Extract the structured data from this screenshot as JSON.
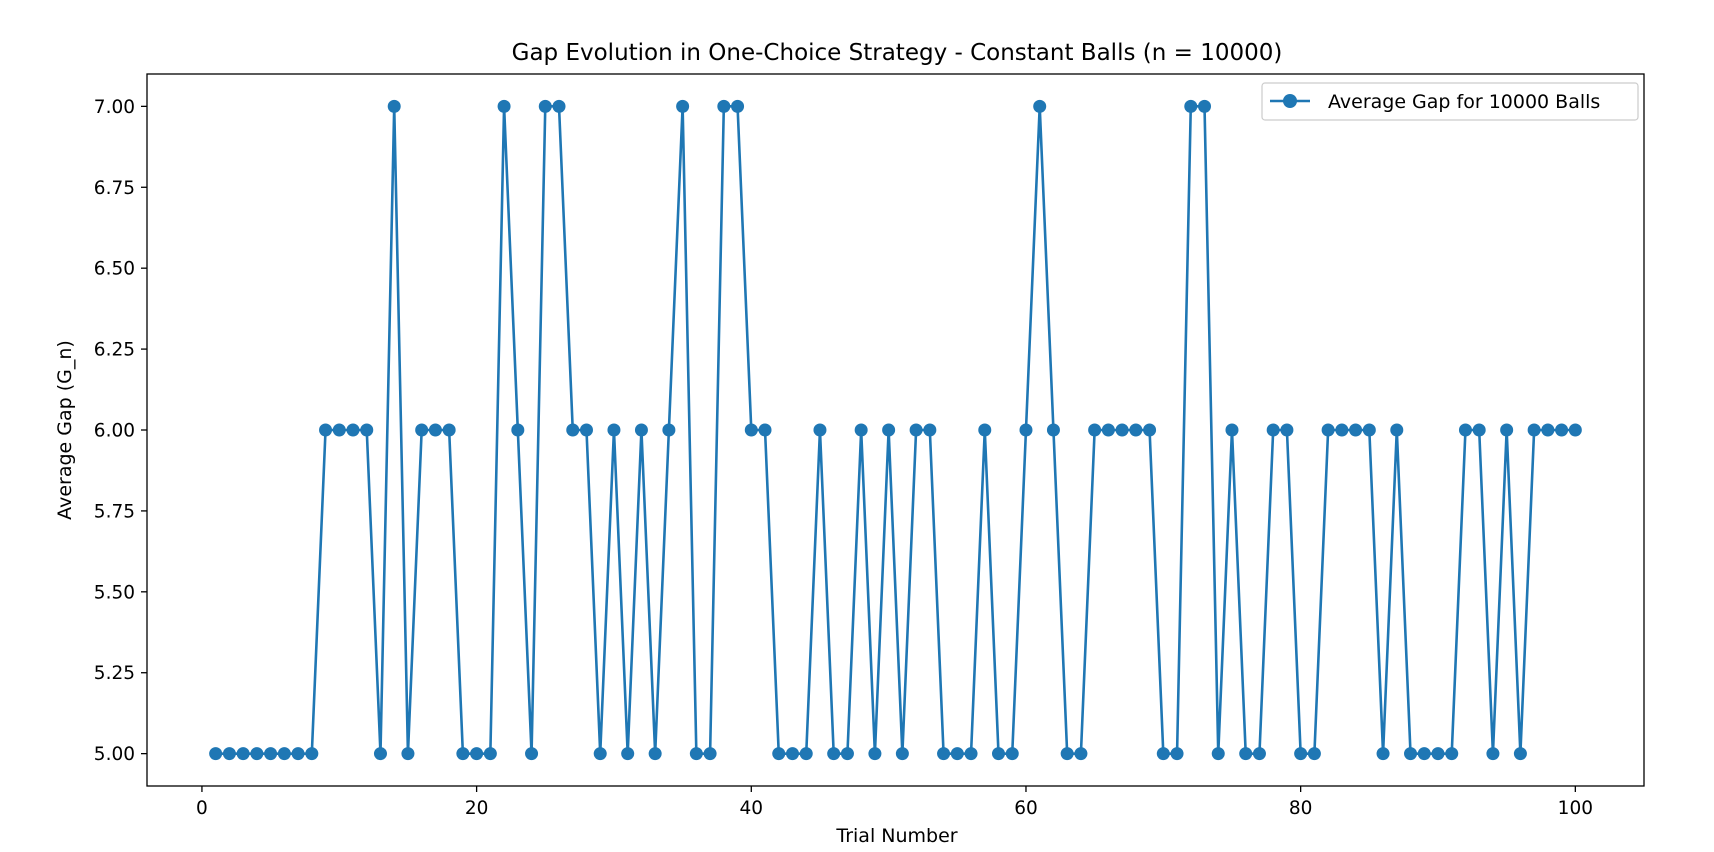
{
  "chart_data": {
    "type": "line",
    "title": "Gap Evolution in One-Choice Strategy - Constant Balls (n = 10000)",
    "xlabel": "Trial Number",
    "ylabel": "Average Gap (G_n)",
    "xlim": [
      -4,
      105
    ],
    "ylim": [
      4.9,
      7.1
    ],
    "xticks": [
      0,
      20,
      40,
      60,
      80,
      100
    ],
    "yticks": [
      5.0,
      5.25,
      5.5,
      5.75,
      6.0,
      6.25,
      6.5,
      6.75,
      7.0
    ],
    "ytick_labels": [
      "5.00",
      "5.25",
      "5.50",
      "5.75",
      "6.00",
      "6.25",
      "6.50",
      "6.75",
      "7.00"
    ],
    "grid": false,
    "legend_position": "top-right",
    "colors": {
      "series": "#1f77b4"
    },
    "series": [
      {
        "name": "Average Gap for 10000 Balls",
        "marker": "circle",
        "x": [
          1,
          2,
          3,
          4,
          5,
          6,
          7,
          8,
          9,
          10,
          11,
          12,
          13,
          14,
          15,
          16,
          17,
          18,
          19,
          20,
          21,
          22,
          23,
          24,
          25,
          26,
          27,
          28,
          29,
          30,
          31,
          32,
          33,
          34,
          35,
          36,
          37,
          38,
          39,
          40,
          41,
          42,
          43,
          44,
          45,
          46,
          47,
          48,
          49,
          50,
          51,
          52,
          53,
          54,
          55,
          56,
          57,
          58,
          59,
          60,
          61,
          62,
          63,
          64,
          65,
          66,
          67,
          68,
          69,
          70,
          71,
          72,
          73,
          74,
          75,
          76,
          77,
          78,
          79,
          80,
          81,
          82,
          83,
          84,
          85,
          86,
          87,
          88,
          89,
          90,
          91,
          92,
          93,
          94,
          95,
          96,
          97,
          98,
          99,
          100
        ],
        "values": [
          5,
          5,
          5,
          5,
          5,
          5,
          5,
          5,
          6,
          6,
          6,
          6,
          5,
          7,
          5,
          6,
          6,
          6,
          5,
          5,
          5,
          7,
          6,
          5,
          7,
          7,
          6,
          6,
          5,
          6,
          5,
          6,
          5,
          6,
          7,
          5,
          5,
          7,
          7,
          6,
          6,
          5,
          5,
          5,
          6,
          5,
          5,
          6,
          5,
          6,
          5,
          6,
          6,
          5,
          5,
          5,
          6,
          5,
          5,
          6,
          7,
          6,
          5,
          5,
          6,
          6,
          6,
          6,
          6,
          5,
          5,
          7,
          7,
          5,
          6,
          5,
          5,
          6,
          6,
          5,
          5,
          6,
          6,
          6,
          6,
          5,
          6,
          5,
          5,
          5,
          5,
          6,
          6,
          5,
          6,
          5,
          6,
          6,
          6,
          6
        ]
      }
    ]
  }
}
